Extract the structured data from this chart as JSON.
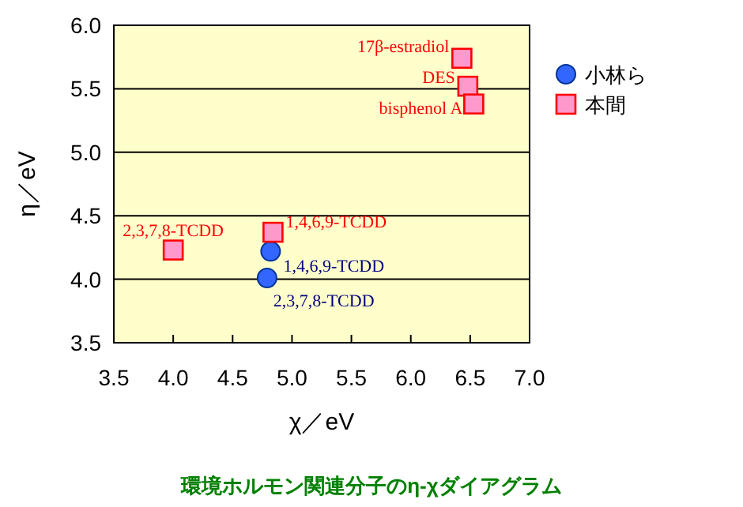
{
  "chart_data": {
    "type": "scatter",
    "title": "環境ホルモン関連分子のη-χダイアグラム",
    "xlabel": "χ／eV",
    "ylabel": "η／eV",
    "xlim": [
      3.5,
      7.0
    ],
    "xticks": [
      {
        "value": 3.5,
        "label": "3.5"
      },
      {
        "value": 4,
        "label": "4.0"
      },
      {
        "value": 4.5,
        "label": "4.5"
      },
      {
        "value": 5,
        "label": "5.0"
      },
      {
        "value": 5.5,
        "label": "5.5"
      },
      {
        "value": 6,
        "label": "6.0"
      },
      {
        "value": 6.5,
        "label": "6.5"
      },
      {
        "value": 7,
        "label": "7.0"
      }
    ],
    "ylim": [
      3.5,
      6.0
    ],
    "yticks": [
      {
        "value": 3.5,
        "label": "3.5"
      },
      {
        "value": 4,
        "label": "4.0"
      },
      {
        "value": 4.5,
        "label": "4.5"
      },
      {
        "value": 5,
        "label": "5.0"
      },
      {
        "value": 5.5,
        "label": "5.5"
      },
      {
        "value": 6,
        "label": "6.0"
      }
    ],
    "grid": "y",
    "legend": "right",
    "series": [
      {
        "name": "小林ら",
        "color": "#3366ff",
        "marker": "circle",
        "x": [
          4.82,
          4.79
        ],
        "values": [
          4.22,
          4.01
        ]
      },
      {
        "name": "本間",
        "color": "#ff99cc",
        "marker": "square",
        "x": [
          4.84,
          4.0,
          6.43,
          6.48,
          6.53
        ],
        "values": [
          4.37,
          4.23,
          5.74,
          5.52,
          5.38
        ]
      }
    ],
    "annotations": [
      {
        "text": "1,4,6,9-TCDD",
        "x": 4.82,
        "y": 4.22
      },
      {
        "text": "2,3,7,8-TCDD",
        "x": 4.79,
        "y": 4.01
      },
      {
        "text": "1,4,6,9-TCDD",
        "x": 4.84,
        "y": 4.37
      },
      {
        "text": "2,3,7,8-TCDD",
        "x": 4.0,
        "y": 4.23
      },
      {
        "text": "17β-estradiol",
        "x": 6.43,
        "y": 5.74
      },
      {
        "text": "DES",
        "x": 6.48,
        "y": 5.52
      },
      {
        "text": "bisphenol A",
        "x": 6.53,
        "y": 5.38
      }
    ]
  }
}
